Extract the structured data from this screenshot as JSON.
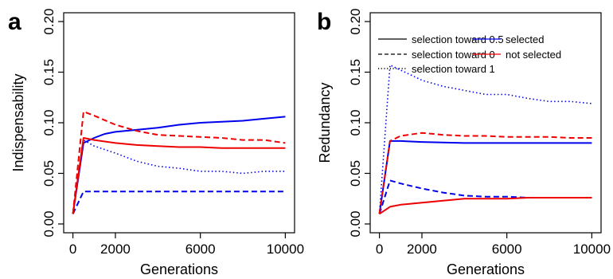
{
  "chart_data": [
    {
      "type": "line",
      "panel_label": "a",
      "xlabel": "Generations",
      "ylabel": "Indispensability",
      "xlim": [
        0,
        10000
      ],
      "ylim": [
        0,
        0.2
      ],
      "x_ticks": [
        0,
        2000,
        6000,
        10000
      ],
      "x_tick_labels": [
        "0",
        "2000",
        "6000",
        "10000"
      ],
      "y_ticks": [
        0,
        0.05,
        0.1,
        0.15,
        0.2
      ],
      "y_tick_labels": [
        "0.00",
        "0.05",
        "0.10",
        "0.15",
        "0.20"
      ],
      "grid": false,
      "series": [
        {
          "color": "#0000ee",
          "dash": "solid",
          "x": [
            0,
            500,
            1000,
            1500,
            2000,
            3000,
            4000,
            5000,
            6000,
            7000,
            8000,
            9000,
            10000
          ],
          "y": [
            0.01,
            0.08,
            0.085,
            0.089,
            0.091,
            0.093,
            0.095,
            0.098,
            0.1,
            0.101,
            0.102,
            0.104,
            0.106
          ]
        },
        {
          "color": "#0000ee",
          "dash": "dashed",
          "x": [
            0,
            500,
            1000,
            2000,
            4000,
            6000,
            8000,
            10000
          ],
          "y": [
            0.01,
            0.032,
            0.032,
            0.032,
            0.032,
            0.032,
            0.032,
            0.032
          ]
        },
        {
          "color": "#0000ee",
          "dash": "dotted",
          "x": [
            0,
            500,
            1000,
            2000,
            3000,
            4000,
            5000,
            6000,
            7000,
            8000,
            9000,
            10000
          ],
          "y": [
            0.01,
            0.083,
            0.077,
            0.07,
            0.062,
            0.057,
            0.055,
            0.052,
            0.052,
            0.05,
            0.052,
            0.052
          ]
        },
        {
          "color": "#ee0000",
          "dash": "solid",
          "x": [
            0,
            500,
            1000,
            2000,
            3000,
            4000,
            5000,
            6000,
            7000,
            8000,
            9000,
            10000
          ],
          "y": [
            0.01,
            0.085,
            0.083,
            0.08,
            0.078,
            0.077,
            0.076,
            0.076,
            0.075,
            0.075,
            0.075,
            0.075
          ]
        },
        {
          "color": "#ee0000",
          "dash": "dashed",
          "x": [
            0,
            500,
            1000,
            2000,
            3000,
            4000,
            5000,
            6000,
            7000,
            8000,
            9000,
            10000
          ],
          "y": [
            0.01,
            0.111,
            0.107,
            0.098,
            0.092,
            0.088,
            0.087,
            0.086,
            0.085,
            0.083,
            0.083,
            0.08
          ]
        }
      ]
    },
    {
      "type": "line",
      "panel_label": "b",
      "xlabel": "Generations",
      "ylabel": "Redundancy",
      "xlim": [
        0,
        10000
      ],
      "ylim": [
        0,
        0.2
      ],
      "x_ticks": [
        0,
        2000,
        6000,
        10000
      ],
      "x_tick_labels": [
        "0",
        "2000",
        "6000",
        "10000"
      ],
      "y_ticks": [
        0,
        0.05,
        0.1,
        0.15,
        0.2
      ],
      "y_tick_labels": [
        "0.00",
        "0.05",
        "0.10",
        "0.15",
        "0.20"
      ],
      "grid": false,
      "legend": {
        "placement": "top-right",
        "entries": [
          {
            "label": "selection toward 0.5",
            "color": "#000000",
            "dash": "solid"
          },
          {
            "label": "selection toward 0",
            "color": "#000000",
            "dash": "dashed"
          },
          {
            "label": "selection toward 1",
            "color": "#000000",
            "dash": "dotted"
          },
          {
            "label": "selected",
            "color": "#0000ee",
            "dash": "solid"
          },
          {
            "label": "not selected",
            "color": "#ee0000",
            "dash": "solid"
          }
        ]
      },
      "series": [
        {
          "color": "#0000ee",
          "dash": "solid",
          "x": [
            0,
            500,
            1000,
            2000,
            4000,
            6000,
            8000,
            10000
          ],
          "y": [
            0.01,
            0.082,
            0.082,
            0.081,
            0.08,
            0.08,
            0.08,
            0.08
          ]
        },
        {
          "color": "#0000ee",
          "dash": "dashed",
          "x": [
            0,
            500,
            1000,
            2000,
            3000,
            4000,
            5000,
            6000,
            7000,
            8000,
            9000,
            10000
          ],
          "y": [
            0.01,
            0.043,
            0.04,
            0.035,
            0.031,
            0.028,
            0.027,
            0.027,
            0.026,
            0.026,
            0.026,
            0.026
          ]
        },
        {
          "color": "#0000ee",
          "dash": "dotted",
          "x": [
            0,
            500,
            1000,
            2000,
            3000,
            4000,
            5000,
            6000,
            7000,
            8000,
            9000,
            10000
          ],
          "y": [
            0.01,
            0.157,
            0.152,
            0.142,
            0.136,
            0.132,
            0.128,
            0.128,
            0.124,
            0.121,
            0.121,
            0.119
          ]
        },
        {
          "color": "#ee0000",
          "dash": "solid",
          "x": [
            0,
            500,
            1000,
            2000,
            3000,
            4000,
            5000,
            6000,
            7000,
            8000,
            9000,
            10000
          ],
          "y": [
            0.01,
            0.017,
            0.019,
            0.021,
            0.023,
            0.025,
            0.025,
            0.025,
            0.026,
            0.026,
            0.026,
            0.026
          ]
        },
        {
          "color": "#ee0000",
          "dash": "dashed",
          "x": [
            0,
            500,
            1000,
            2000,
            3000,
            4000,
            5000,
            6000,
            7000,
            8000,
            9000,
            10000
          ],
          "y": [
            0.01,
            0.082,
            0.087,
            0.09,
            0.088,
            0.087,
            0.087,
            0.086,
            0.086,
            0.086,
            0.085,
            0.085
          ]
        }
      ]
    }
  ]
}
